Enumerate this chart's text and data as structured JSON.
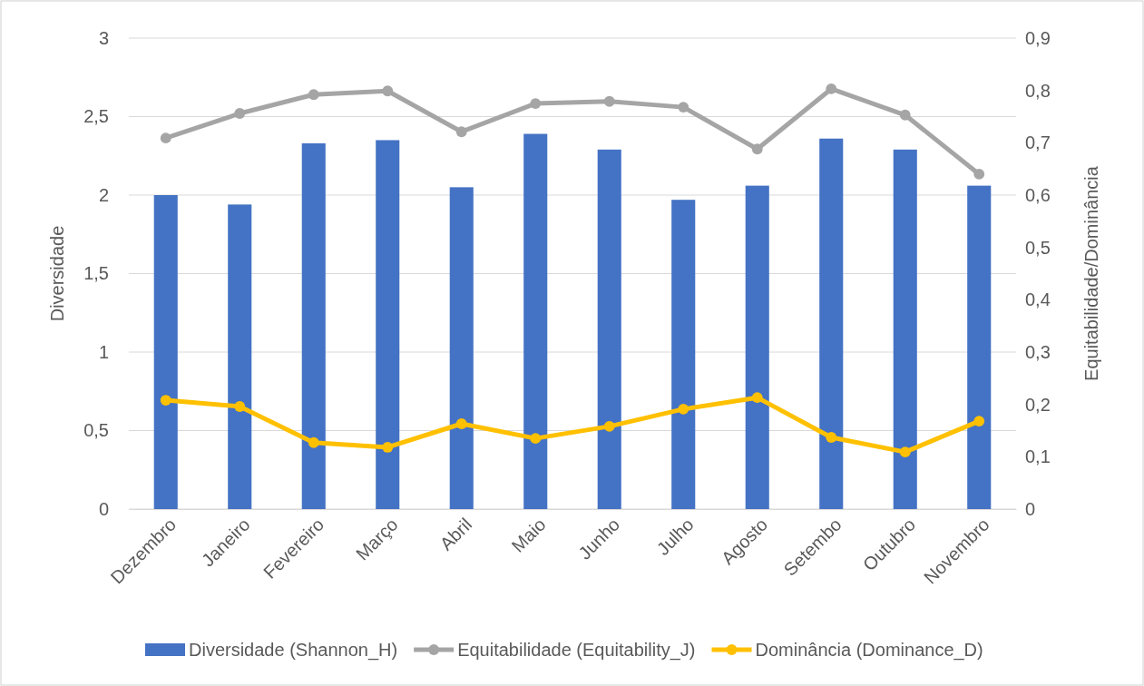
{
  "chart_data": {
    "type": "bar",
    "categories": [
      "Dezembro",
      "Janeiro",
      "Fevereiro",
      "Março",
      "Abril",
      "Maio",
      "Junho",
      "Julho",
      "Agosto",
      "Setembo",
      "Outubro",
      "Novembro"
    ],
    "series": [
      {
        "name": "Diversidade (Shannon_H)",
        "color": "#4472c4",
        "values": [
          2.0,
          1.94,
          2.33,
          2.35,
          2.05,
          2.39,
          2.29,
          1.97,
          2.06,
          2.36,
          2.29,
          2.06
        ]
      },
      {
        "name": "Equitabilidade (Equitability_J)",
        "type": "line",
        "axis": "y2",
        "color": "#a5a5a5",
        "values": [
          0.709,
          0.756,
          0.792,
          0.799,
          0.721,
          0.775,
          0.779,
          0.768,
          0.688,
          0.803,
          0.753,
          0.64
        ]
      },
      {
        "name": "Dominância (Dominance_D)",
        "type": "line",
        "axis": "y2",
        "color": "#ffc000",
        "values": [
          0.208,
          0.196,
          0.127,
          0.118,
          0.163,
          0.135,
          0.158,
          0.191,
          0.213,
          0.137,
          0.109,
          0.168
        ]
      }
    ],
    "ylabel": "Diversidade",
    "y2label": "Equitabilidade/Dominância",
    "ylim": [
      0,
      3
    ],
    "yticks": [
      0,
      {
        "value": 0.5,
        "label": "0,5"
      },
      1,
      {
        "value": 1.5,
        "label": "1,5"
      },
      2,
      {
        "value": 2.5,
        "label": "2,5"
      },
      3
    ],
    "y2lim": [
      0,
      0.9
    ],
    "y2ticks": [
      0,
      {
        "value": 0.1,
        "label": "0,1"
      },
      {
        "value": 0.2,
        "label": "0,2"
      },
      {
        "value": 0.3,
        "label": "0,3"
      },
      {
        "value": 0.4,
        "label": "0,4"
      },
      {
        "value": 0.5,
        "label": "0,5"
      },
      {
        "value": 0.6,
        "label": "0,6"
      },
      {
        "value": 0.7,
        "label": "0,7"
      },
      {
        "value": 0.8,
        "label": "0,8"
      },
      {
        "value": 0.9,
        "label": "0,9"
      }
    ],
    "grid": "y",
    "legend": "bottom",
    "marker": "circle",
    "line_style": "solid"
  }
}
